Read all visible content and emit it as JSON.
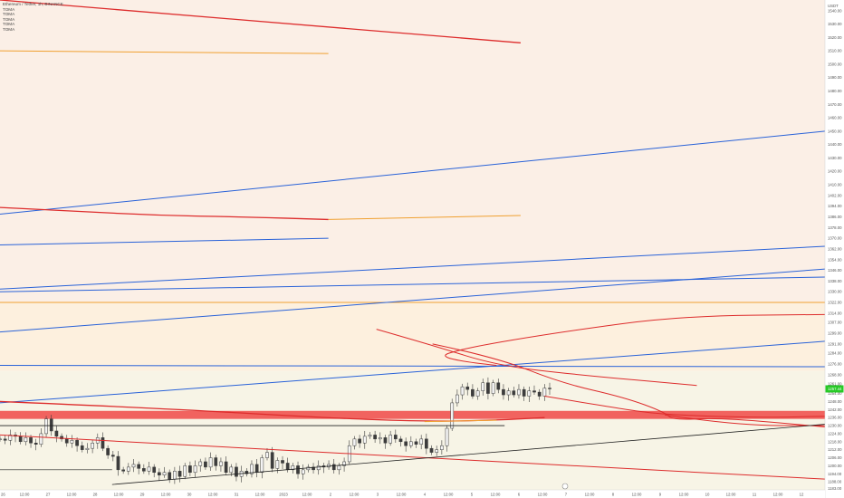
{
  "header": {
    "symbol_line": "Ethereum / Tether, 1h, BINANCE",
    "indicators": [
      "TOMA",
      "TOMA",
      "TOMA",
      "TOMA",
      "TOMA"
    ]
  },
  "chart_data": {
    "type": "candlestick",
    "title": "Ethereum / Tether, 1h, BINANCE",
    "currency": "USDT",
    "ylim": [
      1182,
      1548
    ],
    "y_ticks": [
      1540,
      1530,
      1520,
      1510,
      1500,
      1490,
      1480,
      1470,
      1460,
      1450,
      1440,
      1430,
      1420,
      1410,
      1402,
      1394,
      1386,
      1378,
      1370,
      1362,
      1354,
      1346,
      1338,
      1330,
      1322,
      1314,
      1307,
      1299,
      1291,
      1284,
      1276,
      1268,
      1261,
      1254,
      1248,
      1242,
      1236,
      1230,
      1224,
      1218,
      1212,
      1206,
      1200,
      1194,
      1188,
      1183
    ],
    "y_tick_labels": [
      "1540.00",
      "1530.00",
      "1520.00",
      "1510.00",
      "1500.00",
      "1490.00",
      "1480.00",
      "1470.00",
      "1460.00",
      "1450.00",
      "1440.00",
      "1430.00",
      "1420.00",
      "1410.00",
      "1402.00",
      "1394.00",
      "1386.00",
      "1378.00",
      "1370.00",
      "1362.00",
      "1354.00",
      "1346.00",
      "1338.00",
      "1330.00",
      "1322.00",
      "1314.00",
      "1307.00",
      "1299.00",
      "1291.00",
      "1284.00",
      "1276.00",
      "1268.00",
      "1261.00",
      "1254.00",
      "1248.00",
      "1242.00",
      "1236.00",
      "1230.00",
      "1224.00",
      "1218.00",
      "1212.00",
      "1206.00",
      "1200.00",
      "1194.00",
      "1188.00",
      "1183.00"
    ],
    "x_ticks": [
      "26",
      "12:00",
      "27",
      "12:00",
      "28",
      "12:00",
      "29",
      "12:00",
      "30",
      "12:00",
      "31",
      "12:00",
      "2023",
      "12:00",
      "2",
      "12:00",
      "3",
      "12:00",
      "4",
      "12:00",
      "5",
      "12:00",
      "6",
      "12:00",
      "7",
      "12:00",
      "8",
      "12:00",
      "9",
      "12:00",
      "10",
      "12:00",
      "11",
      "12:00",
      "12",
      "12:00"
    ],
    "last_price": 1257.44,
    "last_price_label": "1257.44",
    "last_price_color": "#26c926",
    "zones": [
      {
        "from": 1322,
        "to": 1548,
        "color": "#fbefe6"
      },
      {
        "from": 1271,
        "to": 1322,
        "color": "#fdf0de"
      },
      {
        "from": 1182,
        "to": 1271,
        "color": "#f7f4e6"
      }
    ],
    "support_band": {
      "from": 1235,
      "to": 1241,
      "color": "#ef5350"
    },
    "candles": {
      "x_range": [
        0,
        107
      ],
      "close": [
        1220,
        1219,
        1223,
        1222,
        1218,
        1221,
        1217,
        1216,
        1224,
        1235,
        1226,
        1222,
        1220,
        1217,
        1219,
        1215,
        1212,
        1213,
        1217,
        1221,
        1213,
        1208,
        1207,
        1197,
        1196,
        1199,
        1201,
        1198,
        1196,
        1199,
        1195,
        1193,
        1195,
        1190,
        1196,
        1192,
        1200,
        1195,
        1200,
        1203,
        1199,
        1206,
        1200,
        1203,
        1195,
        1199,
        1192,
        1196,
        1194,
        1201,
        1195,
        1206,
        1210,
        1198,
        1204,
        1202,
        1197,
        1200,
        1194,
        1197,
        1199,
        1197,
        1200,
        1199,
        1201,
        1197,
        1200,
        1203,
        1215,
        1220,
        1217,
        1222,
        1223,
        1220,
        1221,
        1217,
        1223,
        1220,
        1218,
        1215,
        1218,
        1216,
        1220,
        1213,
        1210,
        1212,
        1215,
        1228,
        1247,
        1253,
        1259,
        1257,
        1252,
        1256,
        1262,
        1254,
        1262,
        1257,
        1253,
        1256,
        1253,
        1257,
        1252,
        1256,
        1255,
        1252,
        1258,
        1257.44
      ],
      "body_color": "#3c3c3c"
    },
    "series": [
      {
        "color": "#dd2c2c",
        "width": 1.3,
        "points": [
          [
            0,
            1548
          ],
          [
            65,
            1516
          ]
        ]
      },
      {
        "color": "#f0a030",
        "width": 1.0,
        "points": [
          [
            0,
            1510
          ],
          [
            41,
            1508
          ]
        ]
      },
      {
        "color": "#2962d8",
        "width": 1.0,
        "points": [
          [
            0,
            1388
          ],
          [
            103,
            1450
          ]
        ]
      },
      {
        "color": "#dd2c2c",
        "width": 1.3,
        "points": [
          [
            0,
            1393
          ],
          [
            10,
            1390
          ],
          [
            20,
            1387
          ],
          [
            30,
            1386
          ],
          [
            41,
            1384
          ]
        ]
      },
      {
        "color": "#f0a030",
        "width": 1.0,
        "points": [
          [
            41,
            1384
          ],
          [
            65,
            1387
          ]
        ]
      },
      {
        "color": "#2962d8",
        "width": 1.0,
        "points": [
          [
            0,
            1365
          ],
          [
            41,
            1370
          ]
        ]
      },
      {
        "color": "#2962d8",
        "width": 1.0,
        "points": [
          [
            0,
            1332
          ],
          [
            103,
            1364
          ]
        ]
      },
      {
        "color": "#2962d8",
        "width": 1.0,
        "points": [
          [
            0,
            1330
          ],
          [
            103,
            1341
          ]
        ]
      },
      {
        "color": "#f0a030",
        "width": 1.0,
        "points": [
          [
            0,
            1322
          ],
          [
            103,
            1322
          ]
        ]
      },
      {
        "color": "#2962d8",
        "width": 1.0,
        "points": [
          [
            0,
            1300
          ],
          [
            103,
            1347
          ]
        ]
      },
      {
        "color": "#2962d8",
        "width": 1.0,
        "points": [
          [
            0,
            1275
          ],
          [
            103,
            1274
          ]
        ]
      },
      {
        "color": "#2962d8",
        "width": 1.0,
        "points": [
          [
            0,
            1247
          ],
          [
            103,
            1293
          ]
        ]
      },
      {
        "color": "#dd2c2c",
        "width": 1.3,
        "points": [
          [
            0,
            1248
          ],
          [
            20,
            1243
          ],
          [
            40,
            1236
          ],
          [
            53,
            1233
          ],
          [
            62,
            1234
          ],
          [
            68,
            1236
          ]
        ]
      },
      {
        "color": "#f0a030",
        "width": 1.0,
        "points": [
          [
            53,
            1233
          ],
          [
            62,
            1234
          ]
        ]
      },
      {
        "color": "#dd2c2c",
        "width": 1.0,
        "points": [
          [
            47,
            1302
          ],
          [
            54,
            1290
          ],
          [
            62,
            1275
          ],
          [
            72,
            1268
          ],
          [
            87,
            1260
          ]
        ]
      },
      {
        "color": "#dd2c2c",
        "width": 1.0,
        "points": [
          [
            62,
            1275
          ],
          [
            54,
            1280
          ],
          [
            58,
            1288
          ],
          [
            70,
            1300
          ],
          [
            85,
            1312
          ],
          [
            103,
            1313
          ]
        ]
      },
      {
        "color": "#dd2c2c",
        "width": 1.0,
        "points": [
          [
            54,
            1291
          ],
          [
            62,
            1281
          ],
          [
            70,
            1262
          ],
          [
            78,
            1251
          ],
          [
            83,
            1240
          ],
          [
            84,
            1234
          ],
          [
            90,
            1236
          ],
          [
            103,
            1229
          ]
        ]
      },
      {
        "color": "#dd2c2c",
        "width": 1.0,
        "points": [
          [
            68,
            1252
          ],
          [
            77,
            1243
          ],
          [
            83,
            1238
          ],
          [
            95,
            1236
          ],
          [
            103,
            1237
          ]
        ]
      },
      {
        "color": "#dd2c2c",
        "width": 1.0,
        "points": [
          [
            83,
            1238
          ],
          [
            92,
            1230
          ],
          [
            103,
            1230
          ]
        ]
      },
      {
        "color": "#dd2c2c",
        "width": 1.0,
        "points": [
          [
            0,
            1223
          ],
          [
            103,
            1190
          ]
        ]
      },
      {
        "color": "#222222",
        "width": 0.8,
        "points": [
          [
            0,
            1230
          ],
          [
            63,
            1230
          ]
        ]
      },
      {
        "color": "#222222",
        "width": 0.8,
        "points": [
          [
            14,
            1186
          ],
          [
            103,
            1231
          ]
        ]
      },
      {
        "color": "#222222",
        "width": 0.7,
        "points": [
          [
            0,
            1197
          ],
          [
            14,
            1197
          ]
        ]
      }
    ]
  }
}
